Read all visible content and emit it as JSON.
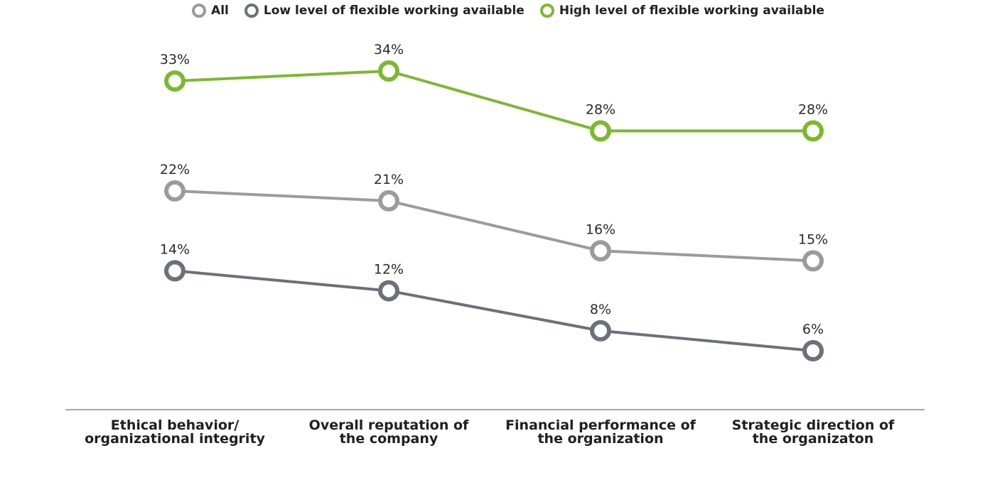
{
  "chart_data": {
    "type": "line",
    "categories": [
      "Ethical behavior/\norganizational integrity",
      "Overall reputation of\nthe company",
      "Financial performance of\nthe organization",
      "Strategic direction of\nthe organizaton"
    ],
    "series": [
      {
        "name": "All",
        "color": "#9b9b9b",
        "values": [
          22,
          21,
          16,
          15
        ],
        "labels": [
          "22%",
          "21%",
          "16%",
          "15%"
        ]
      },
      {
        "name": "Low level of flexible working available",
        "color": "#6b7079",
        "values": [
          14,
          12,
          8,
          6
        ],
        "labels": [
          "14%",
          "12%",
          "8%",
          "6%"
        ]
      },
      {
        "name": "High level of flexible working available",
        "color": "#7cb82f",
        "values": [
          33,
          34,
          28,
          28
        ],
        "labels": [
          "33%",
          "34%",
          "28%",
          "28%"
        ]
      }
    ],
    "legend_position": "top-center",
    "grid": false
  }
}
